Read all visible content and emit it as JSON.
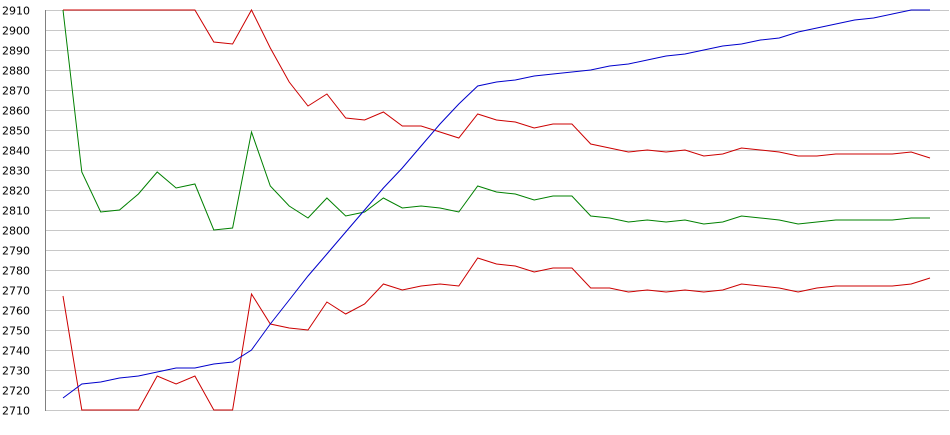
{
  "chart_data": {
    "type": "line",
    "title": "",
    "xlabel": "",
    "ylabel": "",
    "ylim": [
      2710,
      2910
    ],
    "y_ticks": [
      2710,
      2720,
      2730,
      2740,
      2750,
      2760,
      2770,
      2780,
      2790,
      2800,
      2810,
      2820,
      2830,
      2840,
      2850,
      2860,
      2870,
      2880,
      2890,
      2900,
      2910
    ],
    "y_tick_labels": [
      "2710",
      "2720",
      "2730",
      "2740",
      "2750",
      "2760",
      "2770",
      "2780",
      "2790",
      "2800",
      "2810",
      "2820",
      "2830",
      "2840",
      "2850",
      "2860",
      "2870",
      "2880",
      "2890",
      "2900",
      "2910"
    ],
    "grid": "horizontal",
    "x": [
      1,
      2,
      3,
      4,
      5,
      6,
      7,
      8,
      9,
      10,
      11,
      12,
      13,
      14,
      15,
      16,
      17,
      18,
      19,
      20,
      21,
      22,
      23,
      24,
      25,
      26,
      27,
      28,
      29,
      30,
      31,
      32,
      33,
      34,
      35,
      36,
      37,
      38,
      39,
      40,
      41,
      42,
      43,
      44,
      45,
      46,
      47
    ],
    "series": [
      {
        "color": "#cc0000",
        "values": [
          2910,
          2910,
          2910,
          2910,
          2910,
          2910,
          2910,
          2910,
          2894,
          2893,
          2910,
          2891,
          2874,
          2862,
          2868,
          2856,
          2855,
          2859,
          2852,
          2852,
          2849,
          2846,
          2858,
          2855,
          2854,
          2851,
          2853,
          2853,
          2843,
          2841,
          2839,
          2840,
          2839,
          2840,
          2837,
          2838,
          2841,
          2840,
          2839,
          2837,
          2837,
          2838,
          2838,
          2838,
          2838,
          2839,
          2836
        ]
      },
      {
        "color": "#008000",
        "values": [
          2910,
          2829,
          2809,
          2810,
          2818,
          2829,
          2821,
          2823,
          2800,
          2801,
          2849,
          2822,
          2812,
          2806,
          2816,
          2807,
          2809,
          2816,
          2811,
          2812,
          2811,
          2809,
          2822,
          2819,
          2818,
          2815,
          2817,
          2817,
          2807,
          2806,
          2804,
          2805,
          2804,
          2805,
          2803,
          2804,
          2807,
          2806,
          2805,
          2803,
          2804,
          2805,
          2805,
          2805,
          2805,
          2806,
          2806
        ]
      },
      {
        "color": "#cc0000",
        "values": [
          2767,
          2710,
          2710,
          2710,
          2710,
          2727,
          2723,
          2727,
          2710,
          2710,
          2768,
          2753,
          2751,
          2750,
          2764,
          2758,
          2763,
          2773,
          2770,
          2772,
          2773,
          2772,
          2786,
          2783,
          2782,
          2779,
          2781,
          2781,
          2771,
          2771,
          2769,
          2770,
          2769,
          2770,
          2769,
          2770,
          2773,
          2772,
          2771,
          2769,
          2771,
          2772,
          2772,
          2772,
          2772,
          2773,
          2776
        ]
      },
      {
        "color": "#0000cc",
        "values": [
          2716,
          2723,
          2724,
          2726,
          2727,
          2729,
          2731,
          2731,
          2733,
          2734,
          2740,
          2753,
          2765,
          2777,
          2788,
          2799,
          2810,
          2821,
          2831,
          2842,
          2853,
          2863,
          2872,
          2874,
          2875,
          2877,
          2878,
          2879,
          2880,
          2882,
          2883,
          2885,
          2887,
          2888,
          2890,
          2892,
          2893,
          2895,
          2896,
          2899,
          2901,
          2903,
          2905,
          2906,
          2908,
          2910,
          2912
        ]
      }
    ]
  }
}
